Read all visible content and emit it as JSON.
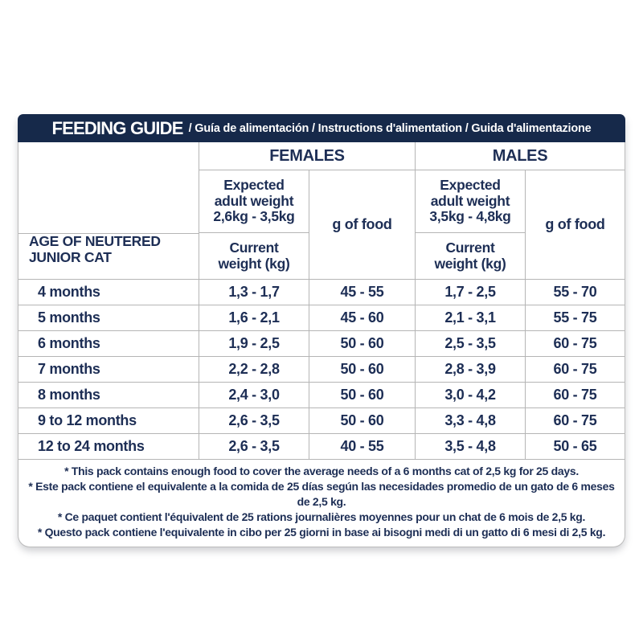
{
  "colors": {
    "header_bar_navy": "#16294a",
    "text_navy": "#1d2e55",
    "inner_border_gray": "#b5b5b5",
    "outer_border_gray": "#bcbcbc",
    "background": "#ffffff"
  },
  "header": {
    "title": "FEEDING GUIDE",
    "subtitle": "/ Guía de alimentación / Instructions d'alimentation / Guida d'alimentazione"
  },
  "table": {
    "age_header_lines": [
      "AGE OF NEUTERED",
      "JUNIOR CAT"
    ],
    "groups": {
      "females": {
        "heading": "FEMALES",
        "expected_lines": [
          "Expected",
          "adult weight",
          "2,6kg - 3,5kg"
        ],
        "current_lines": [
          "Current",
          "weight (kg)"
        ],
        "food_label": "g of food"
      },
      "males": {
        "heading": "MALES",
        "expected_lines": [
          "Expected",
          "adult weight",
          "3,5kg - 4,8kg"
        ],
        "current_lines": [
          "Current",
          "weight (kg)"
        ],
        "food_label": "g of food"
      }
    },
    "rows": [
      {
        "age": "4 months",
        "female_weight": "1,3 - 1,7",
        "female_food": "45 - 55",
        "male_weight": "1,7 - 2,5",
        "male_food": "55 - 70"
      },
      {
        "age": "5 months",
        "female_weight": "1,6 - 2,1",
        "female_food": "45 - 60",
        "male_weight": "2,1 - 3,1",
        "male_food": "55 - 75"
      },
      {
        "age": "6 months",
        "female_weight": "1,9 - 2,5",
        "female_food": "50 - 60",
        "male_weight": "2,5 - 3,5",
        "male_food": "60 - 75"
      },
      {
        "age": "7 months",
        "female_weight": "2,2 - 2,8",
        "female_food": "50 - 60",
        "male_weight": "2,8 - 3,9",
        "male_food": "60 - 75"
      },
      {
        "age": "8 months",
        "female_weight": "2,4 - 3,0",
        "female_food": "50 - 60",
        "male_weight": "3,0 - 4,2",
        "male_food": "60 - 75"
      },
      {
        "age": "9 to 12 months",
        "female_weight": "2,6 - 3,5",
        "female_food": "50 - 60",
        "male_weight": "3,3 - 4,8",
        "male_food": "60 - 75"
      },
      {
        "age": "12 to 24 months",
        "female_weight": "2,6 - 3,5",
        "female_food": "40 - 55",
        "male_weight": "3,5 - 4,8",
        "male_food": "50 - 65"
      }
    ]
  },
  "footnotes": [
    "* This pack contains enough food to cover the average needs of a 6 months cat of 2,5 kg for 25 days.",
    "* Este pack contiene el equivalente a la comida de 25 días según las necesidades promedio de un gato de 6 meses de 2,5 kg.",
    "* Ce paquet contient l'équivalent de 25 rations journalières moyennes pour un chat de 6 mois de 2,5 kg.",
    "* Questo pack contiene l'equivalente in cibo per 25 giorni in base ai bisogni medi di un gatto di 6 mesi di 2,5 kg."
  ]
}
